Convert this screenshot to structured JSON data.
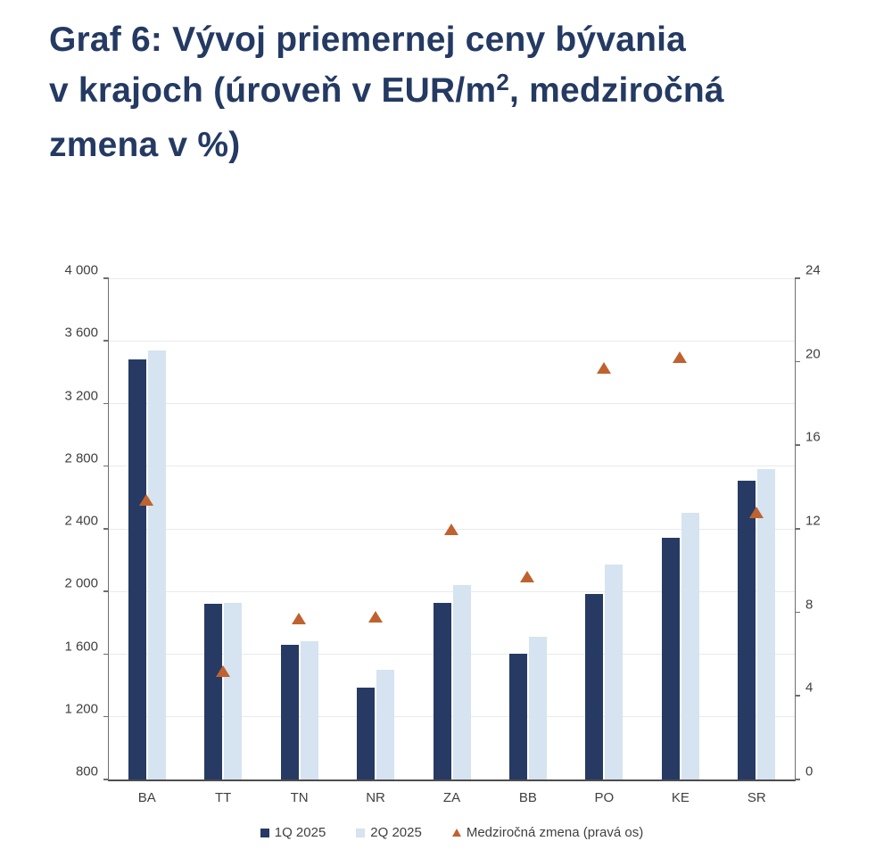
{
  "title": {
    "line1": "Graf 6: Vývoj priemernej ceny bývania",
    "line2_pre": "v krajoch (úroveň v EUR/m",
    "line2_sup": "2",
    "line2_post": ", medziročná",
    "line3": "zmena v %)"
  },
  "colors": {
    "title": "#243a63",
    "bar_q1": "#263a63",
    "bar_q2": "#d6e3f0",
    "triangle": "#c0622f",
    "axis_text": "#404040",
    "gridline": "#e9eaec"
  },
  "chart_data": {
    "type": "bar",
    "categories": [
      "BA",
      "TT",
      "TN",
      "NR",
      "ZA",
      "BB",
      "PO",
      "KE",
      "SR"
    ],
    "series": [
      {
        "name": "1Q 2025",
        "kind": "bar",
        "axis": "left",
        "color": "#263a63",
        "values": [
          3480,
          1920,
          1660,
          1385,
          1925,
          1605,
          1985,
          2345,
          2705
        ]
      },
      {
        "name": "2Q 2025",
        "kind": "bar",
        "axis": "left",
        "color": "#d6e3f0",
        "values": [
          3540,
          1930,
          1685,
          1500,
          2040,
          1710,
          2175,
          2505,
          2780
        ]
      },
      {
        "name": "Medziročná zmena (pravá os)",
        "kind": "triangle",
        "axis": "right",
        "color": "#c0622f",
        "values": [
          13.4,
          5.2,
          7.7,
          7.8,
          12.0,
          9.7,
          19.7,
          20.2,
          12.8
        ]
      }
    ],
    "left_axis": {
      "min": 800,
      "max": 4000,
      "step": 400,
      "tick_labels": [
        "4 000",
        "3 600",
        "3 200",
        "2 800",
        "2 400",
        "2 000",
        "1 600",
        "1 200",
        "800"
      ]
    },
    "right_axis": {
      "min": 0,
      "max": 24,
      "step": 4,
      "tick_labels": [
        "24",
        "20",
        "16",
        "12",
        "8",
        "4",
        "0"
      ]
    },
    "legend_position": "bottom",
    "grid": true
  }
}
